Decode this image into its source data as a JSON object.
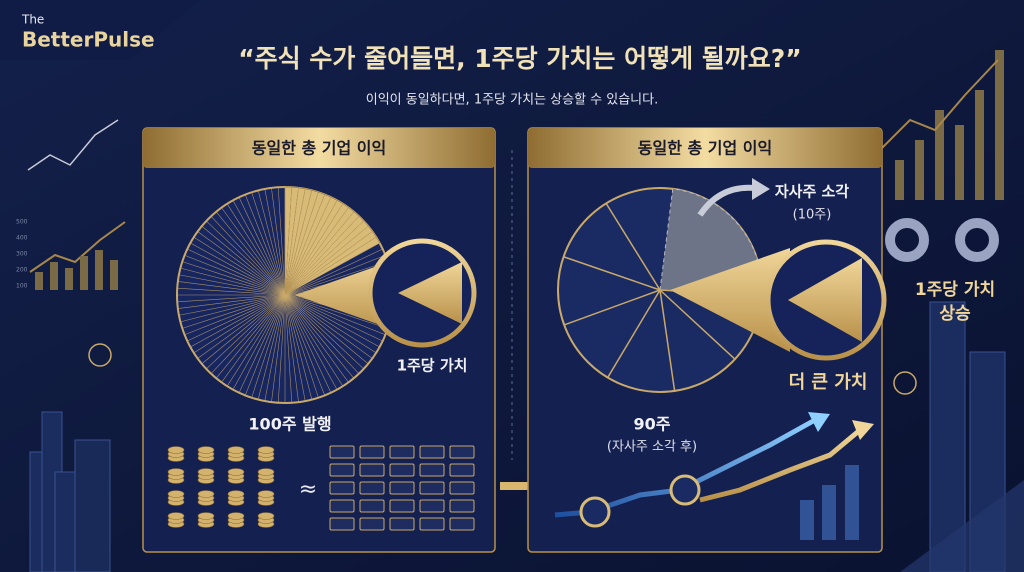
{
  "brand": {
    "small": "The",
    "name": "BetterPulse"
  },
  "header": {
    "title": "“주식 수가 줄어들면, 1주당 가치는 어떻게 될까요?”",
    "subtitle": "이익이 동일하다면, 1주당 가치는 상승할 수 있습니다."
  },
  "left_panel": {
    "title": "동일한 총 기업 이익",
    "per_share_label": "1주당 가치",
    "shares_label": "100주 발행",
    "approx": "≈"
  },
  "right_panel": {
    "title": "동일한 총 기업 이익",
    "buyback_label": "자사주 소각",
    "buyback_count": "(10주)",
    "value_label": "더 큰 가치",
    "shares_label": "90주",
    "shares_note": "(자사주 소각 후)"
  },
  "side": {
    "line1": "1주당 가치",
    "line2": "상승"
  },
  "deco_axis": [
    "500",
    "400",
    "300",
    "200",
    "100"
  ]
}
